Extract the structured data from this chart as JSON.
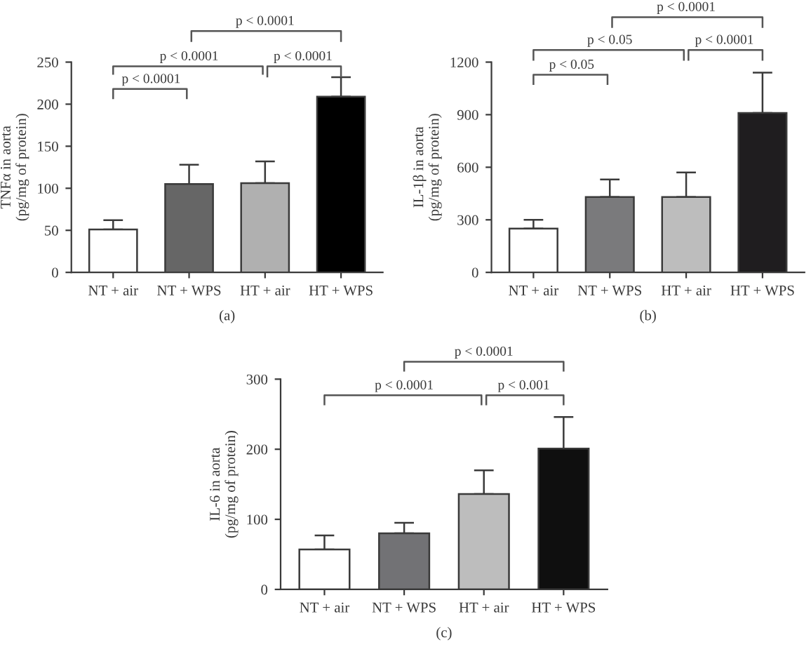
{
  "chart_data": [
    {
      "type": "bar",
      "ylabel": "TNFα in aorta\n(pg/mg of protein)",
      "xlabel": "(a)",
      "categories": [
        "NT + air",
        "NT + WPS",
        "HT + air",
        "HT + WPS"
      ],
      "values": [
        51,
        105,
        106,
        209
      ],
      "errors": [
        11,
        23,
        26,
        23
      ],
      "colors": [
        "#ffffff",
        "#666666",
        "#b0b0b0",
        "#000000"
      ],
      "ylim": [
        0,
        250
      ],
      "yticks": [
        0,
        50,
        100,
        150,
        200,
        250
      ],
      "grid": false,
      "legend": false,
      "annotations": [
        "p < 0.0001",
        "p < 0.0001",
        "p < 0.0001",
        "p < 0.0001"
      ]
    },
    {
      "type": "bar",
      "ylabel": "IL-1β in aorta\n(pg/mg of protein)",
      "xlabel": "(b)",
      "categories": [
        "NT + air",
        "NT + WPS",
        "HT + air",
        "HT + WPS"
      ],
      "values": [
        250,
        430,
        430,
        910
      ],
      "errors": [
        50,
        100,
        140,
        230
      ],
      "colors": [
        "#ffffff",
        "#7a7a7c",
        "#bdbdbd",
        "#1f1d1f"
      ],
      "ylim": [
        0,
        1200
      ],
      "yticks": [
        0,
        300,
        600,
        900,
        1200
      ],
      "grid": false,
      "legend": false,
      "annotations": [
        "p < 0.0001",
        "p < 0.05",
        "p < 0.0001",
        "p < 0.05"
      ]
    },
    {
      "type": "bar",
      "ylabel": "IL-6 in aorta\n(pg/mg of protein)",
      "xlabel": "(c)",
      "categories": [
        "NT + air",
        "NT + WPS",
        "HT + air",
        "HT + WPS"
      ],
      "values": [
        57,
        80,
        136,
        201
      ],
      "errors": [
        20,
        15,
        34,
        45
      ],
      "colors": [
        "#ffffff",
        "#727275",
        "#bdbdbd",
        "#0f0f0f"
      ],
      "ylim": [
        0,
        300
      ],
      "yticks": [
        0,
        100,
        200,
        300
      ],
      "grid": false,
      "legend": false,
      "annotations": [
        "p < 0.0001",
        "p < 0.0001",
        "p < 0.001"
      ]
    }
  ]
}
